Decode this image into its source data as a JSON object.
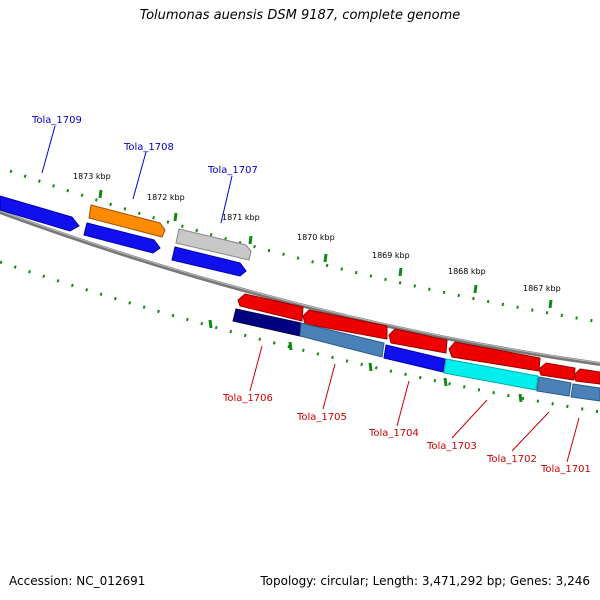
{
  "title": "Tolumonas auensis DSM 9187, complete genome",
  "footer": {
    "accession": "Accession: NC_012691",
    "summary": "Topology: circular; Length: 3,471,292 bp; Genes: 3,246"
  },
  "colors": {
    "forward_strand_label": "#0000cc",
    "reverse_strand_label": "#cc0000",
    "tick": "#118811",
    "backbone": "#888888"
  },
  "scale_labels": [
    "1873 kbp",
    "1872 kbp",
    "1871 kbp",
    "1870 kbp",
    "1869 kbp",
    "1868 kbp",
    "1867 kbp"
  ],
  "genes_top": [
    {
      "label": "Tola_1709"
    },
    {
      "label": "Tola_1708"
    },
    {
      "label": "Tola_1707"
    }
  ],
  "genes_bottom": [
    {
      "label": "Tola_1706"
    },
    {
      "label": "Tola_1705"
    },
    {
      "label": "Tola_1704"
    },
    {
      "label": "Tola_1703"
    },
    {
      "label": "Tola_1702"
    },
    {
      "label": "Tola_1701"
    }
  ]
}
